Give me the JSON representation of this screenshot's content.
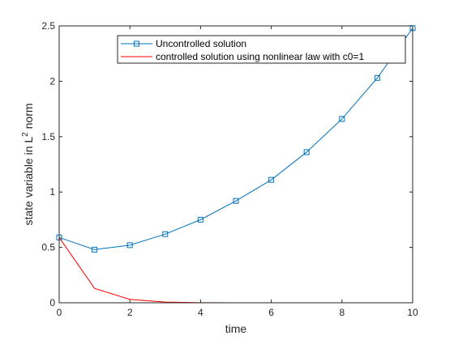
{
  "chart_data": {
    "type": "line",
    "xlabel": "time",
    "ylabel_main": "state variable in L",
    "ylabel_sup": "2",
    "ylabel_tail": " norm",
    "xlim": [
      0,
      10
    ],
    "ylim": [
      0,
      2.5
    ],
    "x_ticks": [
      0,
      2,
      4,
      6,
      8,
      10
    ],
    "y_ticks": [
      0,
      0.5,
      1,
      1.5,
      2,
      2.5
    ],
    "x_tick_labels": [
      "0",
      "2",
      "4",
      "6",
      "8",
      "10"
    ],
    "y_tick_labels": [
      "0",
      "0.5",
      "1",
      "1.5",
      "2",
      "2.5"
    ],
    "legend_position": "top-right",
    "series": [
      {
        "name": "Uncontrolled solution",
        "color": "#0072BD",
        "marker": "square",
        "x": [
          0,
          1,
          2,
          3,
          4,
          5,
          6,
          7,
          8,
          9,
          10
        ],
        "y": [
          0.59,
          0.48,
          0.52,
          0.62,
          0.75,
          0.92,
          1.11,
          1.36,
          1.66,
          2.03,
          2.48
        ]
      },
      {
        "name": "controlled solution using nonlinear law with c0=1",
        "color": "#FF0000",
        "marker": "none",
        "x": [
          0,
          1,
          2,
          3,
          4,
          5,
          6,
          7,
          8,
          9,
          10
        ],
        "y": [
          0.59,
          0.13,
          0.03,
          0.006,
          0.001,
          0.0,
          0.0,
          0.0,
          0.0,
          0.0,
          0.0
        ]
      }
    ]
  }
}
